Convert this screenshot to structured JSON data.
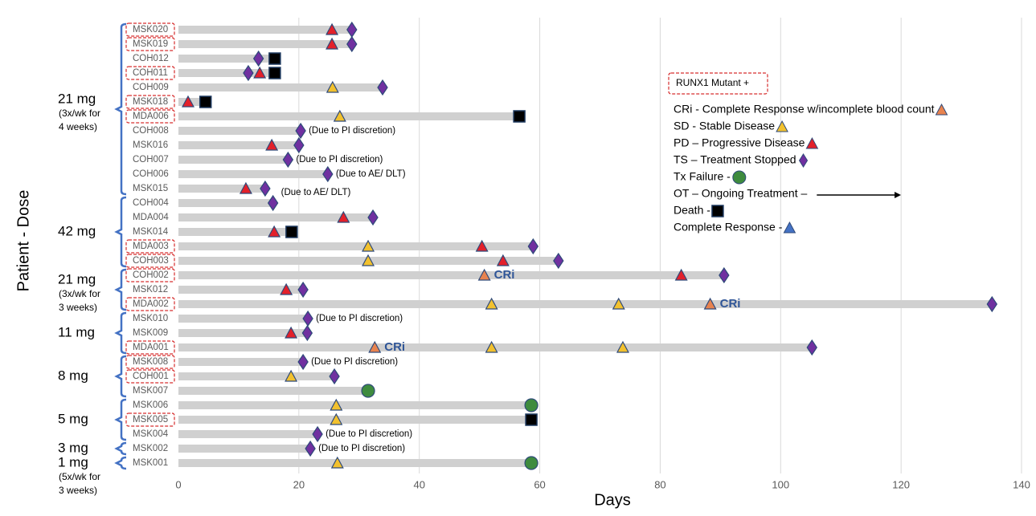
{
  "chart_data": {
    "type": "swimmer",
    "x_label": "Days",
    "y_label": "Patient - Dose",
    "xlim": [
      0,
      140
    ],
    "xticks": [
      0,
      20,
      40,
      60,
      80,
      100,
      120,
      140
    ],
    "grid": true,
    "bar_color": "#d0d0d0",
    "runx1_label": "RUNX1 Mutant +",
    "legend": [
      {
        "marker": "CRi",
        "label": "CRi - Complete Response w/incomplete blood count",
        "color": "#e8834f"
      },
      {
        "marker": "SD",
        "label": "SD - Stable Disease",
        "color": "#f2c12e"
      },
      {
        "marker": "PD",
        "label": "PD – Progressive Disease",
        "color": "#e3202a"
      },
      {
        "marker": "TS",
        "label": "TS – Treatment Stopped",
        "color": "#7030a0"
      },
      {
        "marker": "Tx Failure",
        "label": "Tx Failure -",
        "color": "#3e8b3e"
      },
      {
        "marker": "OT",
        "label": "OT – Ongoing Treatment –",
        "color": "#000000"
      },
      {
        "marker": "Death",
        "label": "Death -",
        "color": "#000000"
      },
      {
        "marker": "Complete Response",
        "label": "Complete Response -",
        "color": "#4472c4"
      }
    ],
    "dose_groups": [
      {
        "label": "21 mg",
        "note": [
          "(3x/wk for",
          "4 weeks)"
        ],
        "first": 0,
        "last": 11
      },
      {
        "label": "42 mg",
        "first": 12,
        "last": 16
      },
      {
        "label": "21 mg",
        "note": [
          "(3x/wk for",
          "3 weeks)"
        ],
        "first": 17,
        "last": 19
      },
      {
        "label": "11 mg",
        "first": 20,
        "last": 22
      },
      {
        "label": "8 mg",
        "first": 23,
        "last": 25
      },
      {
        "label": "5 mg",
        "first": 26,
        "last": 28
      },
      {
        "label": "3 mg",
        "first": 29,
        "last": 29
      },
      {
        "label": "1 mg",
        "note": [
          "(5x/wk for",
          "3 weeks)"
        ],
        "first": 30,
        "last": 30
      }
    ],
    "patients": [
      {
        "name": "MSK020",
        "runx1_mutant": true,
        "duration": 28.8,
        "events": [
          {
            "marker": "PD",
            "day": 25.5
          },
          {
            "marker": "TS",
            "day": 28.8
          }
        ]
      },
      {
        "name": "MSK019",
        "runx1_mutant": true,
        "duration": 28.8,
        "events": [
          {
            "marker": "PD",
            "day": 25.5
          },
          {
            "marker": "TS",
            "day": 28.8
          }
        ]
      },
      {
        "name": "COH012",
        "duration": 16,
        "events": [
          {
            "marker": "TS",
            "day": 13.3
          },
          {
            "marker": "Death",
            "day": 16
          }
        ]
      },
      {
        "name": "COH011",
        "runx1_mutant": true,
        "duration": 16,
        "events": [
          {
            "marker": "TS",
            "day": 11.6
          },
          {
            "marker": "PD",
            "day": 13.5
          },
          {
            "marker": "Death",
            "day": 16
          }
        ]
      },
      {
        "name": "COH009",
        "duration": 33.9,
        "events": [
          {
            "marker": "SD",
            "day": 25.6
          },
          {
            "marker": "TS",
            "day": 33.9
          }
        ]
      },
      {
        "name": "MSK018",
        "runx1_mutant": true,
        "duration": 4.5,
        "events": [
          {
            "marker": "PD",
            "day": 1.6
          },
          {
            "marker": "Death",
            "day": 4.5
          }
        ]
      },
      {
        "name": "MDA006",
        "runx1_mutant": true,
        "duration": 56.6,
        "events": [
          {
            "marker": "SD",
            "day": 26.8
          },
          {
            "marker": "Death",
            "day": 56.6
          }
        ]
      },
      {
        "name": "COH008",
        "duration": 20.3,
        "events": [
          {
            "marker": "TS",
            "day": 20.3
          }
        ],
        "annotation": "(Due to PI discretion)"
      },
      {
        "name": "MSK016",
        "duration": 20,
        "events": [
          {
            "marker": "PD",
            "day": 15.5
          },
          {
            "marker": "TS",
            "day": 20
          }
        ]
      },
      {
        "name": "COH007",
        "duration": 18.2,
        "events": [
          {
            "marker": "TS",
            "day": 18.2
          }
        ],
        "annotation": "(Due to PI discretion)"
      },
      {
        "name": "COH006",
        "duration": 24.8,
        "events": [
          {
            "marker": "TS",
            "day": 24.8
          }
        ],
        "annotation": "(Due to AE/ DLT)"
      },
      {
        "name": "MSK015",
        "duration": 14.4,
        "events": [
          {
            "marker": "PD",
            "day": 11.2
          },
          {
            "marker": "TS",
            "day": 14.4
          }
        ]
      },
      {
        "name": "COH004",
        "duration": 15.7,
        "events": [
          {
            "marker": "TS",
            "day": 15.7
          }
        ],
        "annotation": "(Due to AE/ DLT)"
      },
      {
        "name": "MDA004",
        "duration": 32.3,
        "events": [
          {
            "marker": "PD",
            "day": 27.4
          },
          {
            "marker": "TS",
            "day": 32.3
          }
        ]
      },
      {
        "name": "MSK014",
        "duration": 18.8,
        "events": [
          {
            "marker": "PD",
            "day": 15.9
          },
          {
            "marker": "Death",
            "day": 18.8
          }
        ]
      },
      {
        "name": "MDA003",
        "runx1_mutant": true,
        "duration": 58.9,
        "events": [
          {
            "marker": "SD",
            "day": 31.5
          },
          {
            "marker": "PD",
            "day": 50.4
          },
          {
            "marker": "TS",
            "day": 58.9
          }
        ]
      },
      {
        "name": "COH003",
        "runx1_mutant": true,
        "duration": 63.1,
        "events": [
          {
            "marker": "SD",
            "day": 31.5
          },
          {
            "marker": "PD",
            "day": 53.9
          },
          {
            "marker": "TS",
            "day": 63.1
          }
        ]
      },
      {
        "name": "COH002",
        "runx1_mutant": true,
        "duration": 90.6,
        "events": [
          {
            "marker": "CRi",
            "day": 50.8,
            "label": "CRi"
          },
          {
            "marker": "PD",
            "day": 83.5
          },
          {
            "marker": "TS",
            "day": 90.6
          }
        ]
      },
      {
        "name": "MSK012",
        "duration": 20.7,
        "events": [
          {
            "marker": "PD",
            "day": 17.9
          },
          {
            "marker": "TS",
            "day": 20.7
          }
        ]
      },
      {
        "name": "MDA002",
        "runx1_mutant": true,
        "duration": 135.1,
        "events": [
          {
            "marker": "SD",
            "day": 52
          },
          {
            "marker": "SD",
            "day": 73.1
          },
          {
            "marker": "CRi",
            "day": 88.3,
            "label": "CRi"
          },
          {
            "marker": "TS",
            "day": 135.1
          }
        ]
      },
      {
        "name": "MSK010",
        "duration": 21.5,
        "events": [
          {
            "marker": "TS",
            "day": 21.5
          }
        ],
        "annotation": "(Due to PI discretion)"
      },
      {
        "name": "MSK009",
        "duration": 21.4,
        "events": [
          {
            "marker": "PD",
            "day": 18.7
          },
          {
            "marker": "TS",
            "day": 21.4
          }
        ]
      },
      {
        "name": "MDA001",
        "runx1_mutant": true,
        "duration": 105.2,
        "events": [
          {
            "marker": "CRi",
            "day": 32.6,
            "label": "CRi"
          },
          {
            "marker": "SD",
            "day": 52
          },
          {
            "marker": "SD",
            "day": 73.8
          },
          {
            "marker": "TS",
            "day": 105.2
          }
        ]
      },
      {
        "name": "MSK008",
        "runx1_mutant": true,
        "duration": 20.7,
        "events": [
          {
            "marker": "TS",
            "day": 20.7
          }
        ],
        "annotation": "(Due to PI discretion)"
      },
      {
        "name": "COH001",
        "runx1_mutant": true,
        "duration": 25.9,
        "events": [
          {
            "marker": "SD",
            "day": 18.7
          },
          {
            "marker": "TS",
            "day": 25.9
          }
        ]
      },
      {
        "name": "MSK007",
        "duration": 31.5,
        "events": [
          {
            "marker": "Tx Failure",
            "day": 31.5
          }
        ]
      },
      {
        "name": "MSK006",
        "duration": 58.6,
        "events": [
          {
            "marker": "SD",
            "day": 26.2
          },
          {
            "marker": "Tx Failure",
            "day": 58.6
          }
        ]
      },
      {
        "name": "MSK005",
        "runx1_mutant": true,
        "duration": 58.6,
        "events": [
          {
            "marker": "SD",
            "day": 26.2
          },
          {
            "marker": "Death",
            "day": 58.6
          }
        ]
      },
      {
        "name": "MSK004",
        "duration": 23.1,
        "events": [
          {
            "marker": "TS",
            "day": 23.1
          }
        ],
        "annotation": "(Due to PI discretion)"
      },
      {
        "name": "MSK002",
        "duration": 21.9,
        "events": [
          {
            "marker": "TS",
            "day": 21.9
          }
        ],
        "annotation": "(Due to PI discretion)"
      },
      {
        "name": "MSK001",
        "duration": 58.6,
        "events": [
          {
            "marker": "SD",
            "day": 26.4
          },
          {
            "marker": "Tx Failure",
            "day": 58.6
          }
        ]
      }
    ]
  }
}
